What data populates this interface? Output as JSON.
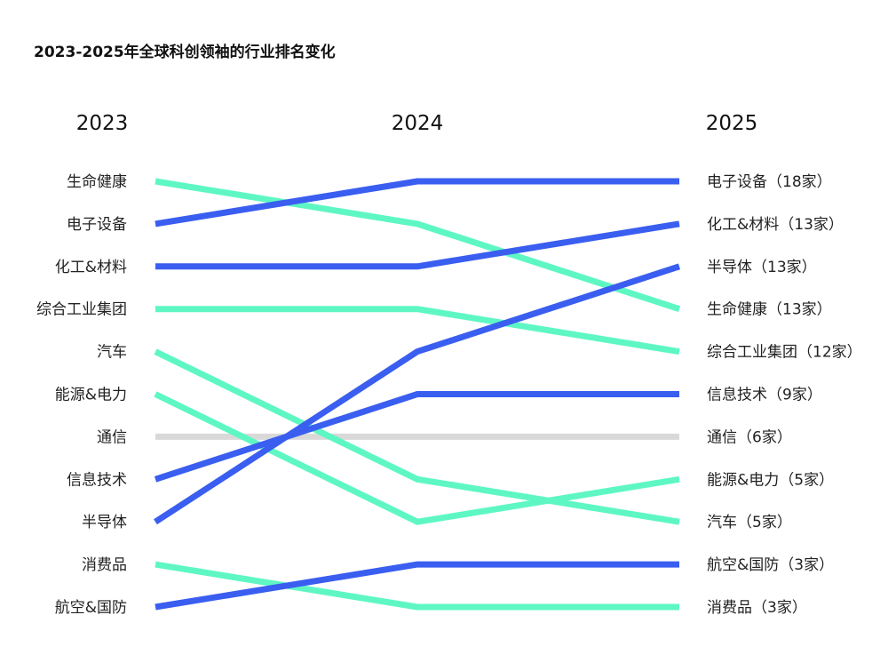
{
  "chart_data": {
    "type": "line",
    "title": "2023-2025年全球科创领袖的行业排名变化",
    "x": [
      "2023",
      "2024",
      "2025"
    ],
    "y_scale": "rank (1 = top)",
    "colors": {
      "up": "#3a5ef0",
      "down": "#5ef7c4",
      "flat": "#d9d9d9"
    },
    "series": [
      {
        "name": "生命健康",
        "ranks": [
          1,
          2,
          4
        ],
        "label_2023": "生命健康",
        "label_2025": "生命健康（13家）",
        "trend": "down"
      },
      {
        "name": "电子设备",
        "ranks": [
          2,
          1,
          1
        ],
        "label_2023": "电子设备",
        "label_2025": "电子设备（18家）",
        "trend": "up"
      },
      {
        "name": "化工&材料",
        "ranks": [
          3,
          3,
          2
        ],
        "label_2023": "化工&材料",
        "label_2025": "化工&材料（13家）",
        "trend": "up"
      },
      {
        "name": "综合工业集团",
        "ranks": [
          4,
          4,
          5
        ],
        "label_2023": "综合工业集团",
        "label_2025": "综合工业集团（12家）",
        "trend": "down"
      },
      {
        "name": "汽车",
        "ranks": [
          5,
          8,
          9
        ],
        "label_2023": "汽车",
        "label_2025": "汽车（5家）",
        "trend": "down"
      },
      {
        "name": "能源&电力",
        "ranks": [
          6,
          9,
          8
        ],
        "label_2023": "能源&电力",
        "label_2025": "能源&电力（5家）",
        "trend": "down"
      },
      {
        "name": "通信",
        "ranks": [
          7,
          7,
          7
        ],
        "label_2023": "通信",
        "label_2025": "通信（6家）",
        "trend": "flat"
      },
      {
        "name": "信息技术",
        "ranks": [
          8,
          6,
          6
        ],
        "label_2023": "信息技术",
        "label_2025": "信息技术（9家）",
        "trend": "up"
      },
      {
        "name": "半导体",
        "ranks": [
          9,
          5,
          3
        ],
        "label_2023": "半导体",
        "label_2025": "半导体（13家）",
        "trend": "up"
      },
      {
        "name": "消费品",
        "ranks": [
          10,
          11,
          11
        ],
        "label_2023": "消费品",
        "label_2025": "消费品（3家）",
        "trend": "down"
      },
      {
        "name": "航空&国防",
        "ranks": [
          11,
          10,
          10
        ],
        "label_2023": "航空&国防",
        "label_2025": "航空&国防（3家）",
        "trend": "up"
      }
    ]
  }
}
